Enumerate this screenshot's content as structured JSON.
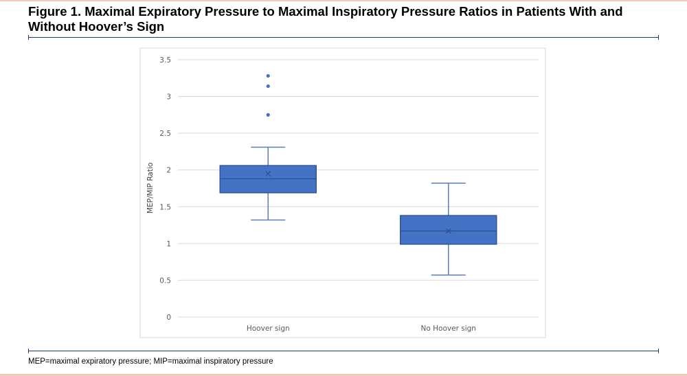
{
  "page": {
    "title": "Figure 1. Maximal Expiratory Pressure to Maximal Inspiratory Pressure Ratios in Patients With and Without Hoover’s Sign",
    "footnote": "MEP=maximal expiratory pressure; MIP=maximal inspiratory pressure"
  },
  "colors": {
    "box_fill": "#4472c4",
    "box_stroke": "#2f5597",
    "whisker": "#5b7fb3",
    "grid": "#d9d9d9",
    "rule": "#1f3b6e",
    "accent_border": "#f3c9b6"
  },
  "chart_data": {
    "type": "box",
    "title": "",
    "xlabel": "",
    "ylabel": "MEP/MIP Ratio",
    "ylim": [
      0,
      3.5
    ],
    "yticks": [
      0,
      0.5,
      1,
      1.5,
      2,
      2.5,
      3,
      3.5
    ],
    "ytick_labels": [
      "0",
      "0.5",
      "1",
      "1.5",
      "2",
      "2.5",
      "3",
      "3.5"
    ],
    "grid": true,
    "categories": [
      "Hoover sign",
      "No Hoover sign"
    ],
    "boxes": [
      {
        "category": "Hoover sign",
        "whisker_low": 1.32,
        "q1": 1.69,
        "median": 1.88,
        "q3": 2.06,
        "whisker_high": 2.31,
        "mean": 1.95,
        "outliers": [
          2.75,
          3.14,
          3.28
        ]
      },
      {
        "category": "No Hoover sign",
        "whisker_low": 0.57,
        "q1": 0.99,
        "median": 1.17,
        "q3": 1.38,
        "whisker_high": 1.82,
        "mean": 1.17,
        "outliers": []
      }
    ]
  }
}
